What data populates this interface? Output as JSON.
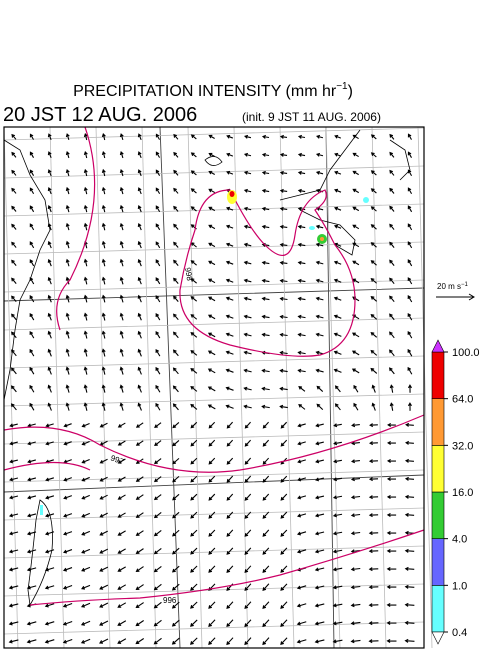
{
  "header": {
    "title": {
      "text": "PRECIPITATION INTENSITY (mm hr",
      "sup": "−1",
      "close": ")"
    },
    "valid_time": "20 JST 12 AUG. 2006",
    "init_time": "(init. 9 JST 11 AUG. 2006)"
  },
  "reference_vector": {
    "label": "20 m s",
    "sup": "−1"
  },
  "contours": [
    "998",
    "997",
    "996"
  ],
  "colorbar": {
    "levels": [
      {
        "value": 0.4,
        "label": "0.4"
      },
      {
        "value": 1,
        "label": "1.0"
      },
      {
        "value": 4,
        "label": "4.0"
      },
      {
        "value": 16,
        "label": "16.0"
      },
      {
        "value": 32,
        "label": "32.0"
      },
      {
        "value": 64,
        "label": "64.0"
      },
      {
        "value": 100,
        "label": "100.0"
      }
    ],
    "colors": [
      "#66ffff",
      "#6666ff",
      "#33cc33",
      "#ffff33",
      "#ff9933",
      "#ee0000"
    ],
    "over_color": "#cc33ff",
    "under_color": "#ffffff"
  }
}
